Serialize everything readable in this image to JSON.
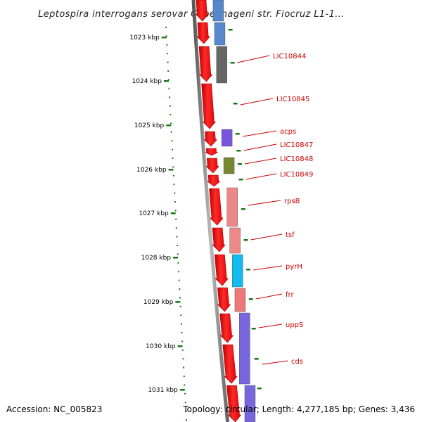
{
  "title": "Leptospira interrogans serovar Copenhageni str. Fiocruz L1-1...",
  "accession_text": "Accession: NC_005823",
  "summary_text": "Topology: circular; Length: 4,277,185 bp; Genes: 3,436",
  "colors": {
    "backbone": "#777777",
    "cds_arrow": "#ee1111",
    "tick": "#1a7a1a",
    "label": "#cc0000"
  },
  "kbp_ticks": [
    "1023 kbp",
    "1024 kbp",
    "1025 kbp",
    "1026 kbp",
    "1027 kbp",
    "1028 kbp",
    "1029 kbp",
    "1030 kbp",
    "1031 kbp"
  ],
  "gene_labels": [
    "LIC10844",
    "LIC10845",
    "acps",
    "LIC10847",
    "LIC10848",
    "LIC10849",
    "rpsB",
    "tsf",
    "pyrH",
    "frr",
    "uppS",
    "cds"
  ],
  "cog_colors": [
    "#5588cc",
    "#666666",
    "#7755dd",
    "#778833",
    "#ee8888",
    "#11bbee",
    "#ee7777",
    "#7766dd"
  ]
}
